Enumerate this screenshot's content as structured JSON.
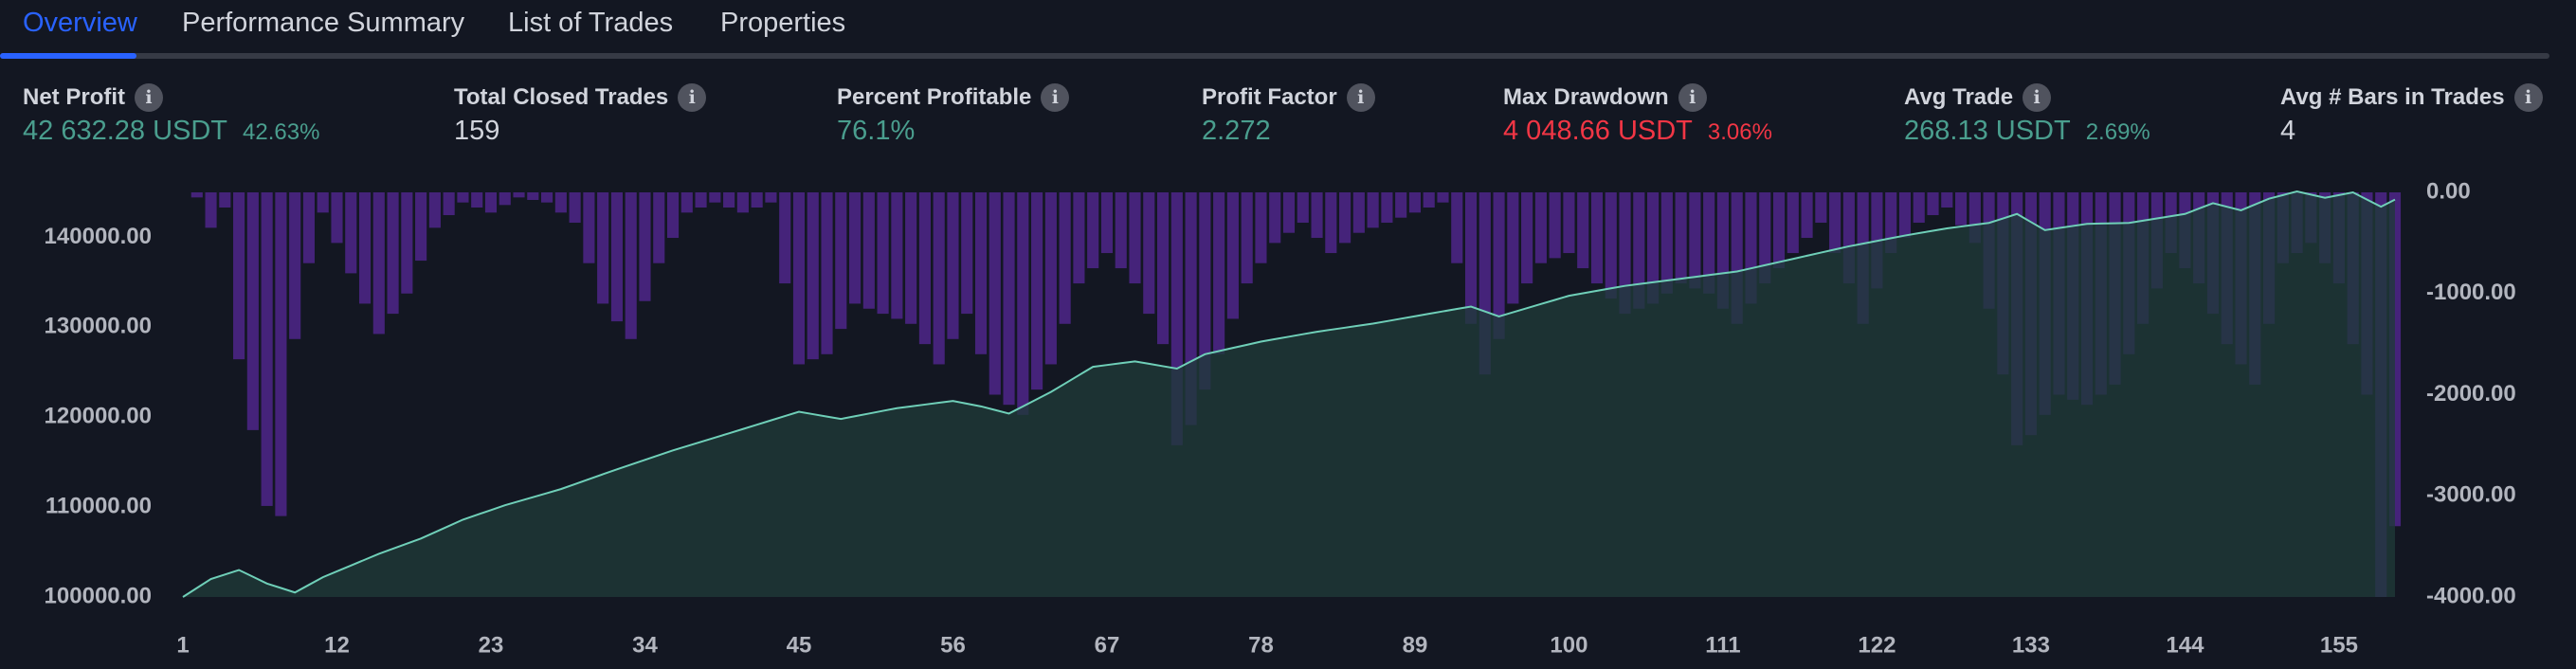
{
  "tabs": [
    {
      "label": "Overview",
      "active": true
    },
    {
      "label": "Performance Summary",
      "active": false
    },
    {
      "label": "List of Trades",
      "active": false
    },
    {
      "label": "Properties",
      "active": false
    }
  ],
  "metrics": [
    {
      "label": "Net Profit",
      "value": "42 632.28 USDT",
      "pct": "42.63%",
      "tone": "pos"
    },
    {
      "label": "Total Closed Trades",
      "value": "159",
      "pct": "",
      "tone": "neutral"
    },
    {
      "label": "Percent Profitable",
      "value": "76.1%",
      "pct": "",
      "tone": "pos"
    },
    {
      "label": "Profit Factor",
      "value": "2.272",
      "pct": "",
      "tone": "pos"
    },
    {
      "label": "Max Drawdown",
      "value": "4 048.66 USDT",
      "pct": "3.06%",
      "tone": "neg"
    },
    {
      "label": "Avg Trade",
      "value": "268.13 USDT",
      "pct": "2.69%",
      "tone": "pos"
    },
    {
      "label": "Avg # Bars in Trades",
      "value": "4",
      "pct": "",
      "tone": "neutral"
    }
  ],
  "colors": {
    "background": "#131722",
    "accent": "#2962ff",
    "equity_line": "#6fcfb8",
    "equity_fill": "#1f3a38",
    "drawdown_bar": "#45237a",
    "positive": "#4a9e8e",
    "negative": "#f23645"
  },
  "chart_data": {
    "type": "area",
    "x_ticks": [
      1,
      12,
      23,
      34,
      45,
      56,
      67,
      78,
      89,
      100,
      111,
      122,
      133,
      144,
      155
    ],
    "left_axis": {
      "ticks": [
        "100000.00",
        "110000.00",
        "120000.00",
        "130000.00",
        "140000.00"
      ],
      "range": [
        100000,
        145000
      ]
    },
    "right_axis": {
      "ticks": [
        "0.00",
        "-1000.00",
        "-2000.00",
        "-3000.00",
        "-4000.00"
      ],
      "range": [
        -4000,
        0
      ]
    },
    "series": [
      {
        "axis": "left",
        "keypoints": [
          [
            1,
            100000
          ],
          [
            3,
            102000
          ],
          [
            5,
            103000
          ],
          [
            7,
            101500
          ],
          [
            9,
            100500
          ],
          [
            11,
            102200
          ],
          [
            15,
            104800
          ],
          [
            18,
            106500
          ],
          [
            21,
            108600
          ],
          [
            24,
            110200
          ],
          [
            28,
            112000
          ],
          [
            32,
            114200
          ],
          [
            36,
            116300
          ],
          [
            40,
            118200
          ],
          [
            45,
            120600
          ],
          [
            48,
            119800
          ],
          [
            52,
            121000
          ],
          [
            56,
            121800
          ],
          [
            58,
            121200
          ],
          [
            60,
            120400
          ],
          [
            63,
            122800
          ],
          [
            66,
            125600
          ],
          [
            69,
            126200
          ],
          [
            72,
            125400
          ],
          [
            74,
            127000
          ],
          [
            78,
            128400
          ],
          [
            82,
            129500
          ],
          [
            86,
            130400
          ],
          [
            90,
            131500
          ],
          [
            93,
            132300
          ],
          [
            95,
            131200
          ],
          [
            100,
            133500
          ],
          [
            104,
            134600
          ],
          [
            108,
            135400
          ],
          [
            112,
            136200
          ],
          [
            116,
            137600
          ],
          [
            120,
            139000
          ],
          [
            124,
            140200
          ],
          [
            127,
            141000
          ],
          [
            130,
            141600
          ],
          [
            132,
            142600
          ],
          [
            134,
            140800
          ],
          [
            137,
            141500
          ],
          [
            140,
            141600
          ],
          [
            144,
            142600
          ],
          [
            146,
            143800
          ],
          [
            148,
            143000
          ],
          [
            150,
            144300
          ],
          [
            152,
            145100
          ],
          [
            154,
            144400
          ],
          [
            156,
            145000
          ],
          [
            158,
            143400
          ],
          [
            159,
            144200
          ]
        ]
      },
      {
        "axis": "right",
        "keypoints": [
          [
            1,
            0
          ],
          [
            2,
            -50
          ],
          [
            3,
            -350
          ],
          [
            4,
            -150
          ],
          [
            5,
            -1650
          ],
          [
            6,
            -2350
          ],
          [
            7,
            -3100
          ],
          [
            8,
            -3200
          ],
          [
            9,
            -1450
          ],
          [
            10,
            -700
          ],
          [
            11,
            -200
          ],
          [
            13,
            -800
          ],
          [
            15,
            -1400
          ],
          [
            17,
            -1000
          ],
          [
            19,
            -350
          ],
          [
            21,
            -100
          ],
          [
            23,
            -200
          ],
          [
            25,
            -50
          ],
          [
            27,
            -100
          ],
          [
            29,
            -300
          ],
          [
            31,
            -1100
          ],
          [
            33,
            -1450
          ],
          [
            35,
            -700
          ],
          [
            37,
            -200
          ],
          [
            39,
            -100
          ],
          [
            41,
            -200
          ],
          [
            43,
            -100
          ],
          [
            45,
            -1700
          ],
          [
            47,
            -1600
          ],
          [
            49,
            -1100
          ],
          [
            51,
            -1200
          ],
          [
            53,
            -1300
          ],
          [
            55,
            -1700
          ],
          [
            57,
            -1200
          ],
          [
            59,
            -2000
          ],
          [
            61,
            -2200
          ],
          [
            63,
            -1700
          ],
          [
            65,
            -900
          ],
          [
            67,
            -600
          ],
          [
            69,
            -900
          ],
          [
            71,
            -1500
          ],
          [
            72,
            -2500
          ],
          [
            73,
            -2300
          ],
          [
            75,
            -1600
          ],
          [
            77,
            -900
          ],
          [
            79,
            -500
          ],
          [
            81,
            -300
          ],
          [
            83,
            -600
          ],
          [
            85,
            -400
          ],
          [
            87,
            -300
          ],
          [
            89,
            -200
          ],
          [
            91,
            -100
          ],
          [
            93,
            -1300
          ],
          [
            94,
            -1800
          ],
          [
            96,
            -1100
          ],
          [
            98,
            -700
          ],
          [
            100,
            -600
          ],
          [
            102,
            -900
          ],
          [
            104,
            -1200
          ],
          [
            106,
            -1100
          ],
          [
            108,
            -900
          ],
          [
            110,
            -1000
          ],
          [
            112,
            -1300
          ],
          [
            114,
            -900
          ],
          [
            116,
            -600
          ],
          [
            118,
            -300
          ],
          [
            120,
            -900
          ],
          [
            121,
            -1300
          ],
          [
            123,
            -600
          ],
          [
            125,
            -300
          ],
          [
            127,
            -150
          ],
          [
            129,
            -500
          ],
          [
            131,
            -1800
          ],
          [
            132,
            -2500
          ],
          [
            133,
            -2400
          ],
          [
            135,
            -2000
          ],
          [
            137,
            -2100
          ],
          [
            139,
            -1900
          ],
          [
            141,
            -1300
          ],
          [
            143,
            -600
          ],
          [
            145,
            -900
          ],
          [
            147,
            -1500
          ],
          [
            149,
            -1900
          ],
          [
            151,
            -700
          ],
          [
            153,
            -500
          ],
          [
            155,
            -900
          ],
          [
            156,
            -1500
          ],
          [
            157,
            -2000
          ],
          [
            158,
            -4000
          ],
          [
            159,
            -3300
          ]
        ]
      }
    ]
  }
}
